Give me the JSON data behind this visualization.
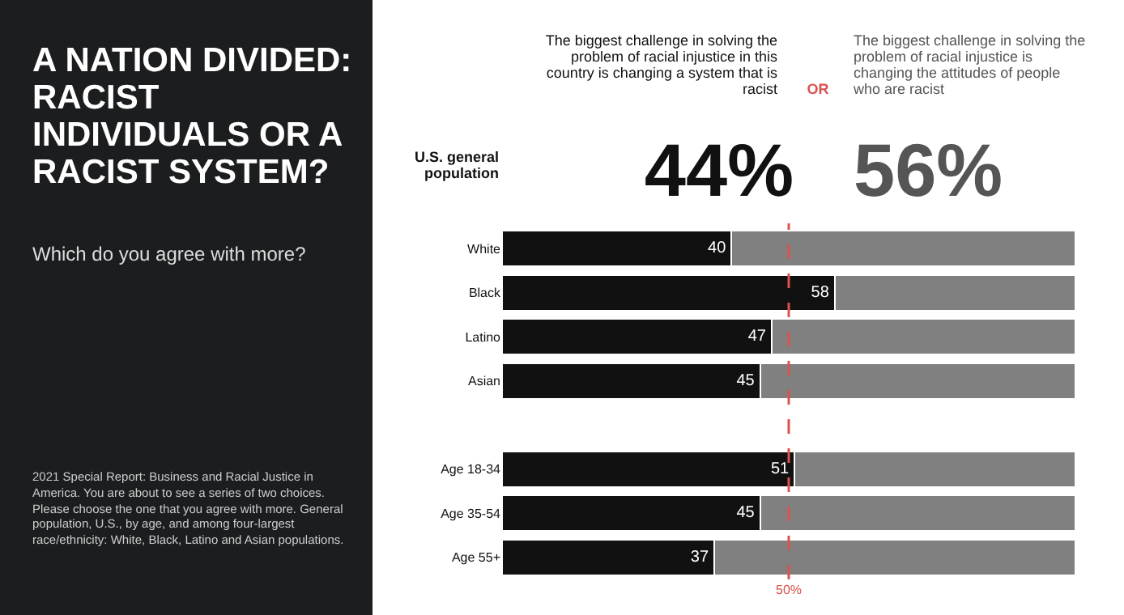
{
  "chart_data": {
    "type": "bar",
    "orientation": "horizontal",
    "stacked": true,
    "title": "A NATION DIVIDED: RACIST INDIVIDUALS OR A RACIST SYSTEM?",
    "subtitle": "Which do you agree with more?",
    "categories": [
      "White",
      "Black",
      "Latino",
      "Asian",
      null,
      "Age 18-34",
      "Age 35-54",
      "Age 55+"
    ],
    "series": [
      {
        "color": "#111111",
        "values": [
          40,
          58,
          47,
          45,
          null,
          51,
          45,
          37
        ],
        "value_labels": [
          "40",
          "58",
          "47",
          "45",
          null,
          "51",
          "45",
          "37"
        ]
      },
      {
        "color": "#808080",
        "values": [
          60,
          42,
          53,
          55,
          null,
          49,
          55,
          63
        ]
      }
    ],
    "xlim": [
      0,
      100
    ],
    "tick_labels": "y",
    "ref_lines": [
      {
        "axis": "x",
        "value": 50,
        "label": "50%",
        "color": "#d9534f",
        "line_style": "dashed"
      }
    ],
    "annotations": [
      "U.S. general population",
      "The biggest challenge in solving the problem of racial injustice in this country is changing a system that is racist",
      "44%",
      "OR",
      "The biggest challenge in solving the problem of racial injustice is changing the attitudes of people who are racist",
      "56%",
      "2021 Special Report: Business and Racial Justice in America. You are about to see a series of two choices. Please choose the one that you agree with more. General population, U.S., by age, and among four-largest race/ethnicity: White, Black, Latino and Asian populations."
    ]
  }
}
